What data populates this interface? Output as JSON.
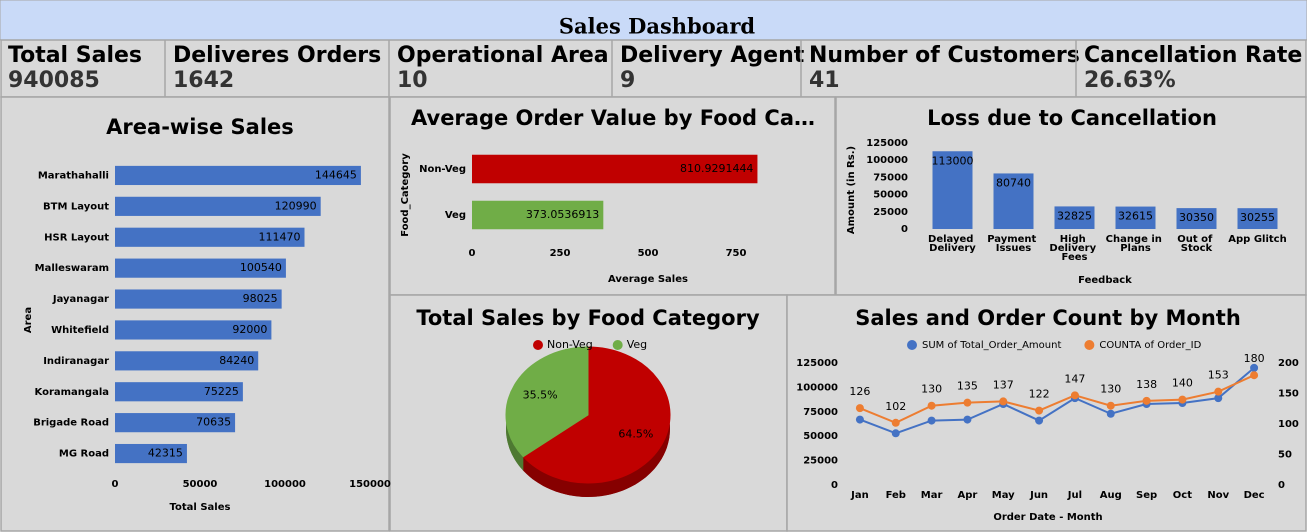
{
  "header": {
    "title": "Sales Dashboard"
  },
  "kpis": [
    {
      "label": "Total Sales",
      "value": "940085"
    },
    {
      "label": "Deliveres Orders",
      "value": "1642"
    },
    {
      "label": "Operational Area",
      "value": "10"
    },
    {
      "label": "Delivery Agent",
      "value": "9"
    },
    {
      "label": "Number of Customers",
      "value": "41"
    },
    {
      "label": "Cancellation Rate",
      "value": "26.63%"
    }
  ],
  "chart_data": [
    {
      "type": "bar",
      "orientation": "horizontal",
      "title": "Area-wise Sales",
      "x_label": "Total Sales",
      "y_label": "Area",
      "categories": [
        "Marathahalli",
        "BTM Layout",
        "HSR Layout",
        "Malleswaram",
        "Jayanagar",
        "Whitefield",
        "Indiranagar",
        "Koramangala",
        "Brigade Road",
        "MG Road"
      ],
      "values": [
        144645,
        120990,
        111470,
        100540,
        98025,
        92000,
        84240,
        75225,
        70635,
        42315
      ],
      "color": "#4472c4",
      "xlim": [
        0,
        150000
      ],
      "xticks": [
        0,
        50000,
        100000,
        150000
      ],
      "grid": false
    },
    {
      "type": "bar",
      "orientation": "horizontal",
      "title": "Average Order Value by Food Ca…",
      "x_label": "Average Sales",
      "y_label": "Food_Category",
      "categories": [
        "Non-Veg",
        "Veg"
      ],
      "values": [
        810.9291444,
        373.0536913
      ],
      "colors": [
        "#c00000",
        "#70ad47"
      ],
      "xlim": [
        0,
        1000
      ],
      "xticks": [
        0,
        250,
        500,
        750
      ],
      "grid": false
    },
    {
      "type": "bar",
      "orientation": "vertical",
      "title": "Loss due to Cancellation",
      "x_label": "Feedback",
      "y_label": "Amount (in Rs.)",
      "categories": [
        "Delayed Delivery",
        "Payment Issues",
        "High Delivery Fees",
        "Change in Plans",
        "Out of Stock",
        "App Glitch"
      ],
      "values": [
        113000,
        80740,
        32825,
        32615,
        30350,
        30255
      ],
      "color": "#4472c4",
      "ylim": [
        0,
        125000
      ],
      "yticks": [
        0,
        25000,
        50000,
        75000,
        100000,
        125000
      ],
      "grid": false
    },
    {
      "type": "pie",
      "title": "Total Sales by Food Category",
      "categories": [
        "Non-Veg",
        "Veg"
      ],
      "values": [
        64.5,
        35.5
      ],
      "value_labels": [
        "64.5%",
        "35.5%"
      ],
      "colors": [
        "#c00000",
        "#70ad47"
      ],
      "legend": "top"
    },
    {
      "type": "line",
      "title": "Sales and Order Count by Month",
      "x_label": "Order Date - Month",
      "categories": [
        "Jan",
        "Feb",
        "Mar",
        "Apr",
        "May",
        "Jun",
        "Jul",
        "Aug",
        "Sep",
        "Oct",
        "Nov",
        "Dec"
      ],
      "series": [
        {
          "name": "SUM of Total_Order_Amount",
          "color": "#4472c4",
          "values": [
            67000,
            53000,
            66000,
            67000,
            83000,
            66000,
            89000,
            73000,
            83000,
            84000,
            89000,
            120000
          ]
        },
        {
          "name": "COUNTA of Order_ID",
          "color": "#ed7d31",
          "axis": "y2",
          "values": [
            126,
            102,
            130,
            135,
            137,
            122,
            147,
            130,
            138,
            140,
            153,
            180
          ]
        }
      ],
      "ylim": [
        0,
        125000
      ],
      "yticks": [
        0,
        25000,
        50000,
        75000,
        100000,
        125000
      ],
      "y2lim": [
        0,
        200
      ],
      "y2ticks": [
        0,
        50,
        100,
        150,
        200
      ],
      "legend": "top",
      "grid": false
    }
  ]
}
